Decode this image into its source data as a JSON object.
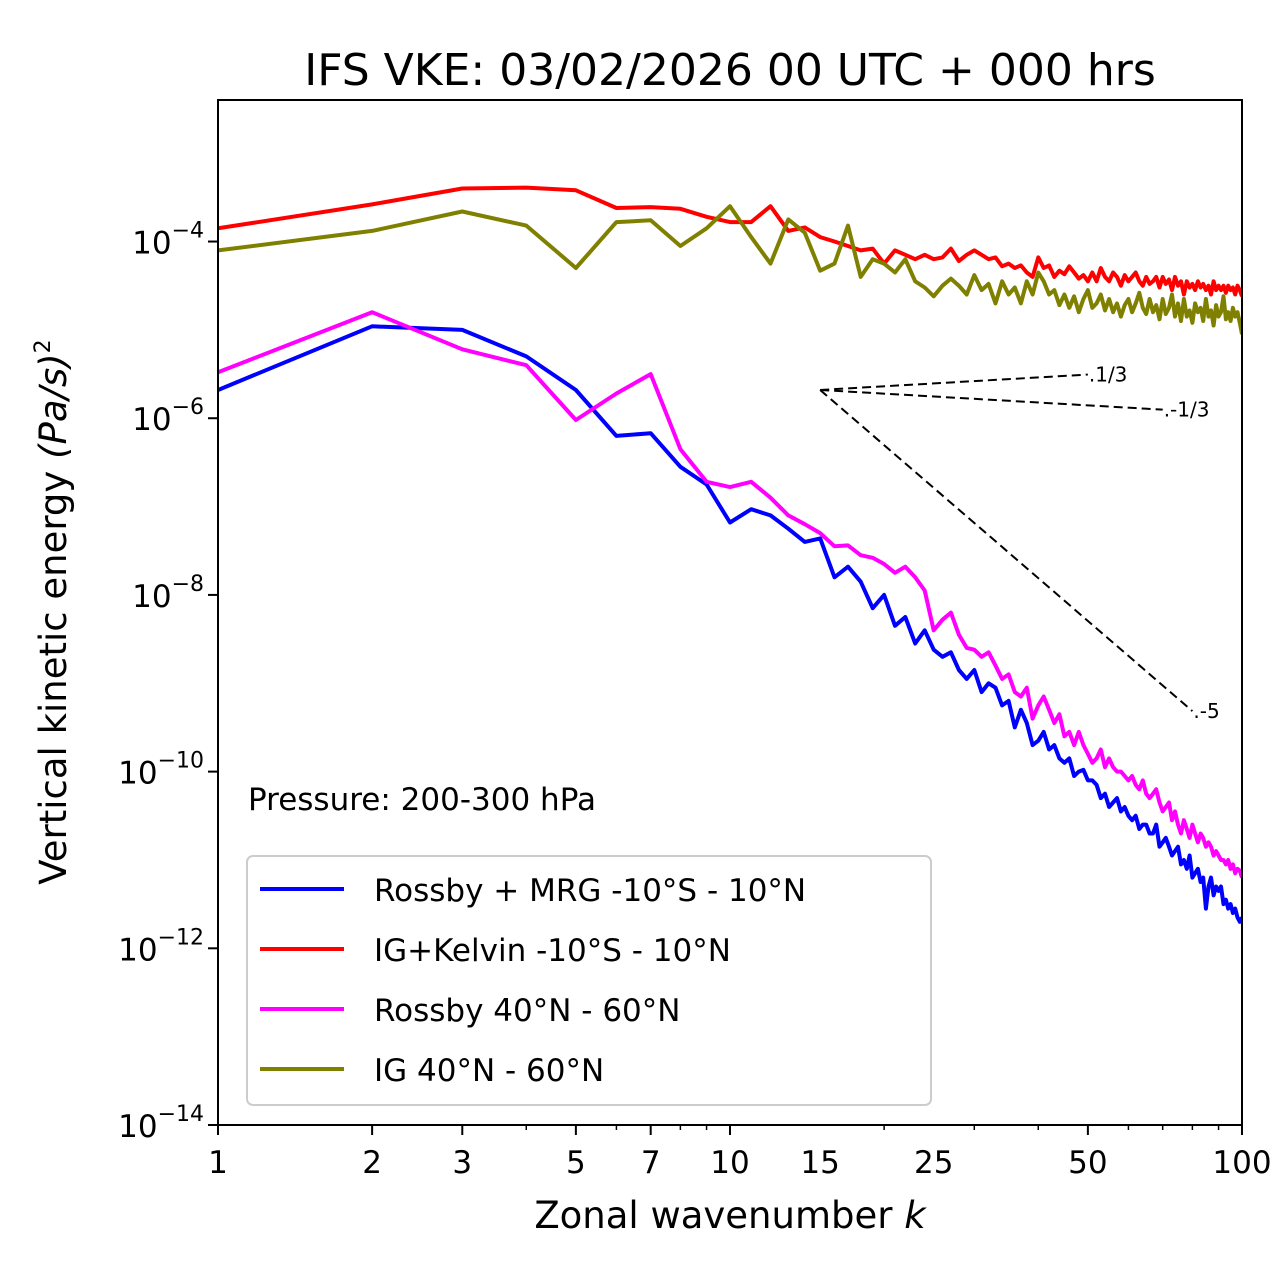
{
  "chart_data": {
    "type": "line",
    "title": "IFS VKE: 03/02/2026 00 UTC + 000 hrs",
    "xlabel": "Zonal wavenumber",
    "xlabel_var": "k",
    "ylabel": "Vertical kinetic energy",
    "ylabel_units": "(Pa/s)",
    "ylabel_units_exp": "2",
    "xscale": "log",
    "yscale": "log",
    "xlim": [
      1,
      100
    ],
    "ylim": [
      1e-14,
      0.004
    ],
    "x_ticks": [
      1,
      2,
      3,
      5,
      7,
      10,
      15,
      25,
      50,
      100
    ],
    "x_tick_labels": [
      "1",
      "2",
      "3",
      "5",
      "7",
      "10",
      "15",
      "25",
      "50",
      "100"
    ],
    "y_ticks_exponent": [
      -4,
      -6,
      -8,
      -10,
      -12,
      -14
    ],
    "y_tick_labels": [
      {
        "base": "10",
        "exp": "−4"
      },
      {
        "base": "10",
        "exp": "−6"
      },
      {
        "base": "10",
        "exp": "−8"
      },
      {
        "base": "10",
        "exp": "−10"
      },
      {
        "base": "10",
        "exp": "−12"
      },
      {
        "base": "10",
        "exp": "−14"
      }
    ],
    "grid": false,
    "legend_position": "lower-left",
    "annotation": "Pressure: 200-300 hPa",
    "value_encoding": "log10 of energy, k = 1..100",
    "series": [
      {
        "name": "Rossby + MRG -10°S - 10°N",
        "color": "#0000ff",
        "log10_values": [
          -5.68,
          -4.96,
          -5.0,
          -5.3,
          -5.68,
          -6.2,
          -6.17,
          -6.55,
          -6.75,
          -7.18,
          -7.03,
          -7.1,
          -7.25,
          -7.4,
          -7.36,
          -7.8,
          -7.68,
          -7.85,
          -8.15,
          -8.0,
          -8.35,
          -8.25,
          -8.55,
          -8.4,
          -8.62,
          -8.7,
          -8.65,
          -8.85,
          -8.95,
          -8.85,
          -9.1,
          -9.0,
          -9.05,
          -9.25,
          -9.2,
          -9.5,
          -9.3,
          -9.45,
          -9.7,
          -9.65,
          -9.55,
          -9.75,
          -9.7,
          -9.85,
          -9.9,
          -9.85,
          -10.05,
          -10.0,
          -9.98,
          -10.1,
          -10.1,
          -10.15,
          -10.3,
          -10.25,
          -10.4,
          -10.35,
          -10.3,
          -10.45,
          -10.4,
          -10.5,
          -10.55,
          -10.5,
          -10.65,
          -10.6,
          -10.6,
          -10.7,
          -10.7,
          -10.6,
          -10.85,
          -10.8,
          -10.75,
          -10.85,
          -10.95,
          -10.9,
          -10.85,
          -11.05,
          -11.0,
          -11.1,
          -10.95,
          -11.2,
          -11.15,
          -11.1,
          -11.25,
          -11.2,
          -11.55,
          -11.3,
          -11.2,
          -11.4,
          -11.3,
          -11.35,
          -11.3,
          -11.5,
          -11.45,
          -11.55,
          -11.5,
          -11.6,
          -11.55,
          -11.65,
          -11.7,
          -11.65
        ]
      },
      {
        "name": "IG+Kelvin -10°S - 10°N",
        "color": "#ff0000",
        "log10_values": [
          -3.85,
          -3.58,
          -3.4,
          -3.39,
          -3.42,
          -3.62,
          -3.61,
          -3.63,
          -3.72,
          -3.78,
          -3.78,
          -3.6,
          -3.88,
          -3.84,
          -3.95,
          -4.0,
          -4.05,
          -4.1,
          -4.08,
          -4.25,
          -4.1,
          -4.15,
          -4.2,
          -4.15,
          -4.2,
          -4.18,
          -4.08,
          -4.22,
          -4.15,
          -4.1,
          -4.15,
          -4.2,
          -4.18,
          -4.28,
          -4.25,
          -4.3,
          -4.27,
          -4.35,
          -4.4,
          -4.18,
          -4.3,
          -4.27,
          -4.4,
          -4.33,
          -4.37,
          -4.28,
          -4.35,
          -4.42,
          -4.38,
          -4.45,
          -4.35,
          -4.45,
          -4.3,
          -4.4,
          -4.45,
          -4.35,
          -4.4,
          -4.5,
          -4.38,
          -4.45,
          -4.4,
          -4.35,
          -4.45,
          -4.5,
          -4.4,
          -4.48,
          -4.45,
          -4.4,
          -4.52,
          -4.4,
          -4.48,
          -4.43,
          -4.55,
          -4.4,
          -4.5,
          -4.45,
          -4.6,
          -4.45,
          -4.52,
          -4.48,
          -4.55,
          -4.45,
          -4.52,
          -4.48,
          -4.55,
          -4.5,
          -4.6,
          -4.45,
          -4.55,
          -4.5,
          -4.55,
          -4.5,
          -4.58,
          -4.5,
          -4.55,
          -4.52,
          -4.6,
          -4.5,
          -4.55,
          -4.62
        ]
      },
      {
        "name": "Rossby 40°N - 60°N",
        "color": "#ff00ff",
        "log10_values": [
          -5.48,
          -4.8,
          -5.22,
          -5.4,
          -6.02,
          -5.72,
          -5.5,
          -6.35,
          -6.72,
          -6.78,
          -6.72,
          -6.9,
          -7.1,
          -7.2,
          -7.3,
          -7.45,
          -7.44,
          -7.55,
          -7.58,
          -7.65,
          -7.75,
          -7.68,
          -7.8,
          -7.95,
          -8.4,
          -8.28,
          -8.2,
          -8.45,
          -8.6,
          -8.62,
          -8.7,
          -8.65,
          -8.8,
          -8.95,
          -8.9,
          -9.1,
          -9.15,
          -9.05,
          -9.4,
          -9.25,
          -9.15,
          -9.3,
          -9.45,
          -9.35,
          -9.6,
          -9.55,
          -9.7,
          -9.55,
          -9.7,
          -9.8,
          -9.9,
          -9.85,
          -9.75,
          -9.95,
          -9.85,
          -9.95,
          -10.0,
          -10.0,
          -10.05,
          -10.1,
          -10.05,
          -10.15,
          -10.2,
          -10.1,
          -10.25,
          -10.3,
          -10.25,
          -10.2,
          -10.35,
          -10.45,
          -10.4,
          -10.35,
          -10.55,
          -10.45,
          -10.6,
          -10.7,
          -10.55,
          -10.65,
          -10.75,
          -10.6,
          -10.7,
          -10.8,
          -10.7,
          -10.75,
          -10.85,
          -10.8,
          -10.85,
          -10.95,
          -10.9,
          -10.95,
          -11.0,
          -11.0,
          -11.05,
          -11.0,
          -11.1,
          -11.05,
          -11.15,
          -11.1,
          -11.12,
          -11.2
        ]
      },
      {
        "name": "IG 40°N - 60°N",
        "color": "#808000",
        "log10_values": [
          -4.1,
          -3.88,
          -3.66,
          -3.82,
          -4.3,
          -3.78,
          -3.76,
          -4.05,
          -3.85,
          -3.6,
          -3.95,
          -4.25,
          -3.75,
          -3.9,
          -4.33,
          -4.25,
          -3.82,
          -4.4,
          -4.2,
          -4.25,
          -4.35,
          -4.2,
          -4.45,
          -4.52,
          -4.62,
          -4.5,
          -4.42,
          -4.5,
          -4.6,
          -4.38,
          -4.55,
          -4.48,
          -4.7,
          -4.45,
          -4.6,
          -4.52,
          -4.7,
          -4.45,
          -4.6,
          -4.35,
          -4.45,
          -4.6,
          -4.55,
          -4.72,
          -4.6,
          -4.75,
          -4.62,
          -4.8,
          -4.65,
          -4.55,
          -4.75,
          -4.7,
          -4.6,
          -4.78,
          -4.65,
          -4.8,
          -4.7,
          -4.85,
          -4.72,
          -4.65,
          -4.8,
          -4.7,
          -4.58,
          -4.75,
          -4.82,
          -4.65,
          -4.8,
          -4.72,
          -4.88,
          -4.65,
          -4.82,
          -4.75,
          -4.6,
          -4.85,
          -4.7,
          -4.9,
          -4.65,
          -4.85,
          -4.78,
          -4.92,
          -4.7,
          -4.8,
          -4.75,
          -4.9,
          -4.65,
          -4.85,
          -4.78,
          -4.95,
          -4.72,
          -4.85,
          -4.8,
          -4.62,
          -4.88,
          -4.8,
          -4.9,
          -4.75,
          -4.85,
          -4.8,
          -4.92,
          -5.05
        ]
      }
    ],
    "reference_slopes": [
      {
        "label": "1/3",
        "slope": 0.3333,
        "x_start": 15,
        "x_end": 50,
        "log10_y_start": -5.68
      },
      {
        "label": "-1/3",
        "slope": -0.3333,
        "x_start": 15,
        "x_end": 70,
        "log10_y_start": -5.68
      },
      {
        "label": "-5",
        "slope": -5,
        "x_start": 15,
        "x_end": 80,
        "log10_y_start": -5.68
      }
    ]
  }
}
